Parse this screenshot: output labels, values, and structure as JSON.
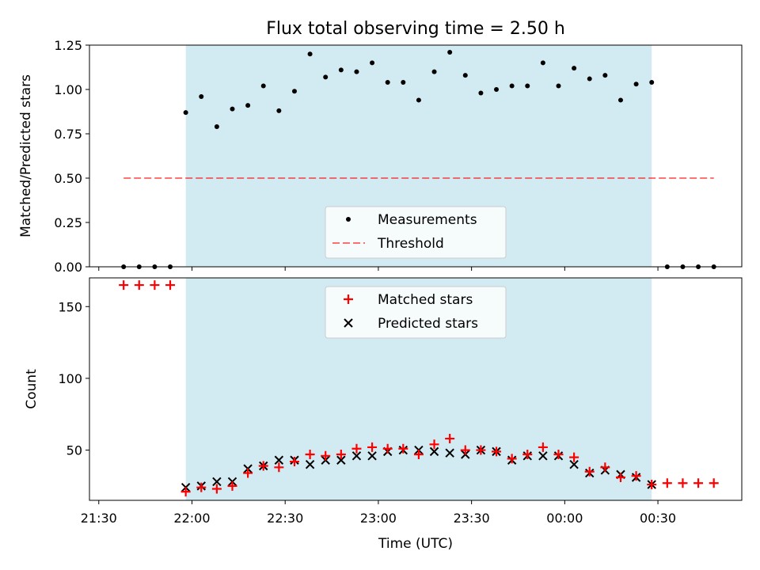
{
  "figure": {
    "title": "Flux total observing time = 2.50 h",
    "xlabel": "Time (UTC)"
  },
  "colors": {
    "shade": "#add8e6",
    "threshold": "#ff0000",
    "matched": "#ff0000",
    "predicted": "#000000",
    "measure": "#000000"
  },
  "chart_data": [
    {
      "type": "scatter",
      "panel": "top",
      "ylabel": "Matched/Predicted stars",
      "ylim": [
        0.0,
        1.25
      ],
      "yticks": [
        0.0,
        0.25,
        0.5,
        0.75,
        1.0,
        1.25
      ],
      "ytick_labels": [
        "0.00",
        "0.25",
        "0.50",
        "0.75",
        "1.00",
        "1.25"
      ],
      "xlim": [
        "21:27",
        "00:57"
      ],
      "observing_window": [
        "21:58",
        "00:28"
      ],
      "series": [
        {
          "name": "Measurements",
          "x": [
            "21:38",
            "21:43",
            "21:48",
            "21:53",
            "21:58",
            "22:03",
            "22:08",
            "22:13",
            "22:18",
            "22:23",
            "22:28",
            "22:33",
            "22:38",
            "22:43",
            "22:48",
            "22:53",
            "22:58",
            "23:03",
            "23:08",
            "23:13",
            "23:18",
            "23:23",
            "23:28",
            "23:33",
            "23:38",
            "23:43",
            "23:48",
            "23:53",
            "23:58",
            "00:03",
            "00:08",
            "00:13",
            "00:18",
            "00:23",
            "00:28",
            "00:33",
            "00:38",
            "00:43",
            "00:48"
          ],
          "y": [
            0,
            0,
            0,
            0,
            0.87,
            0.96,
            0.79,
            0.89,
            0.91,
            1.02,
            0.88,
            0.99,
            1.2,
            1.07,
            1.11,
            1.1,
            1.15,
            1.04,
            1.04,
            0.94,
            1.1,
            1.21,
            1.08,
            0.98,
            1.0,
            1.02,
            1.02,
            1.15,
            1.02,
            1.12,
            1.06,
            1.08,
            0.94,
            1.03,
            1.04,
            0,
            0,
            0,
            0
          ]
        },
        {
          "name": "Threshold",
          "x": [
            "21:38",
            "00:48"
          ],
          "y": [
            0.5,
            0.5
          ]
        }
      ]
    },
    {
      "type": "scatter",
      "panel": "bottom",
      "ylabel": "Count",
      "ylim": [
        15,
        170
      ],
      "yticks": [
        50,
        100,
        150
      ],
      "ytick_labels": [
        "50",
        "100",
        "150"
      ],
      "xlim": [
        "21:27",
        "00:57"
      ],
      "observing_window": [
        "21:58",
        "00:28"
      ],
      "xticks": [
        "21:30",
        "22:00",
        "22:30",
        "23:00",
        "23:30",
        "00:00",
        "00:30"
      ],
      "series": [
        {
          "name": "Matched stars",
          "x": [
            "21:38",
            "21:43",
            "21:48",
            "21:53",
            "21:58",
            "22:03",
            "22:08",
            "22:13",
            "22:18",
            "22:23",
            "22:28",
            "22:33",
            "22:38",
            "22:43",
            "22:48",
            "22:53",
            "22:58",
            "23:03",
            "23:08",
            "23:13",
            "23:18",
            "23:23",
            "23:28",
            "23:33",
            "23:38",
            "23:43",
            "23:48",
            "23:53",
            "23:58",
            "00:03",
            "00:08",
            "00:13",
            "00:18",
            "00:23",
            "00:28",
            "00:33",
            "00:38",
            "00:43",
            "00:48"
          ],
          "y": [
            165,
            165,
            165,
            165,
            21,
            24,
            23,
            25,
            34,
            39,
            38,
            42,
            47,
            46,
            47,
            51,
            52,
            51,
            51,
            47,
            54,
            58,
            50,
            50,
            49,
            44,
            47,
            52,
            47,
            45,
            35,
            38,
            31,
            32,
            26,
            27,
            27,
            27,
            27
          ]
        },
        {
          "name": "Predicted stars",
          "x": [
            "21:58",
            "22:03",
            "22:08",
            "22:13",
            "22:18",
            "22:23",
            "22:28",
            "22:33",
            "22:38",
            "22:43",
            "22:48",
            "22:53",
            "22:58",
            "23:03",
            "23:08",
            "23:13",
            "23:18",
            "23:23",
            "23:28",
            "23:33",
            "23:38",
            "23:43",
            "23:48",
            "23:53",
            "23:58",
            "00:03",
            "00:08",
            "00:13",
            "00:18",
            "00:23",
            "00:28"
          ],
          "y": [
            24,
            25,
            28,
            28,
            37,
            39,
            43,
            43,
            40,
            43,
            43,
            46,
            46,
            49,
            50,
            50,
            49,
            48,
            47,
            50,
            49,
            43,
            46,
            46,
            46,
            40,
            34,
            36,
            33,
            31,
            26
          ]
        }
      ]
    }
  ]
}
